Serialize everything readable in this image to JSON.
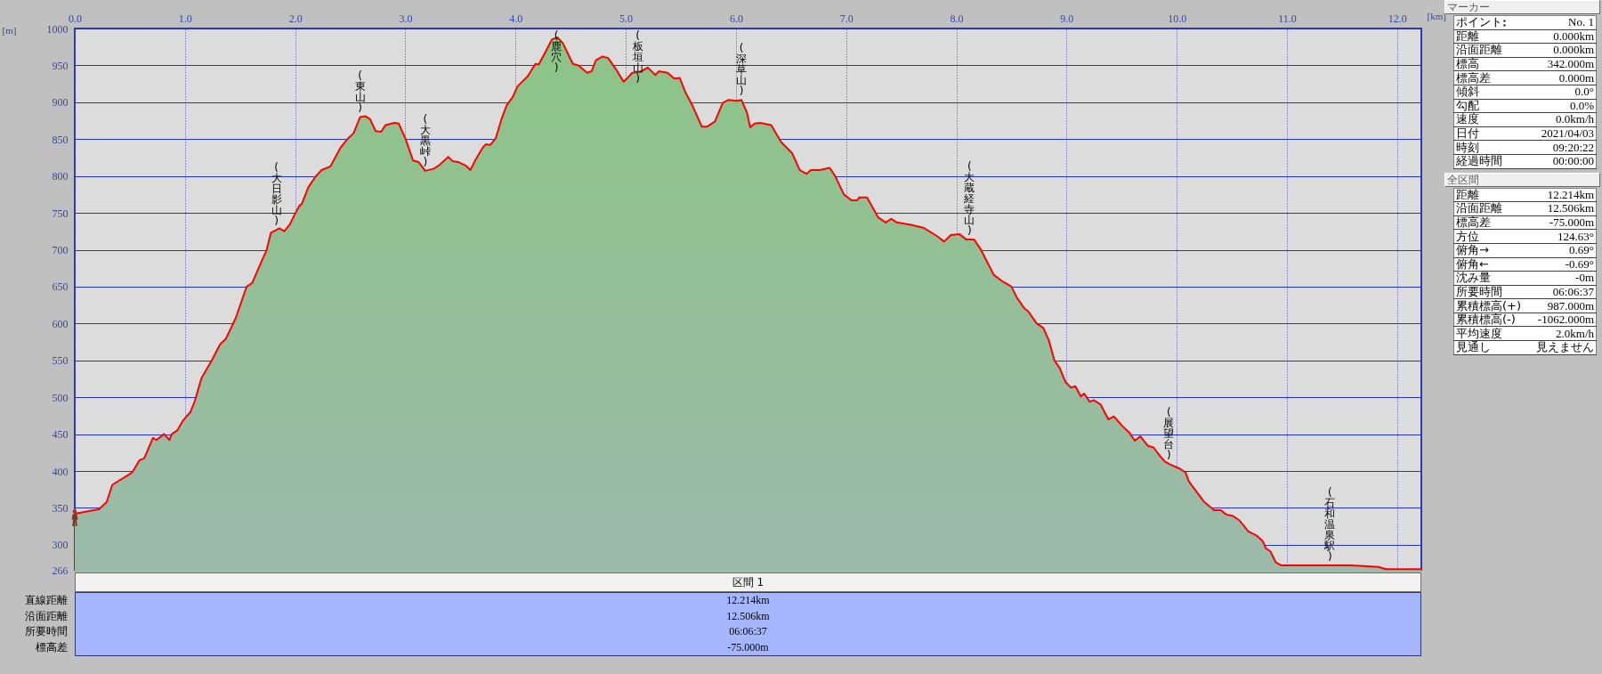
{
  "chart_data": [
    {
      "type": "area",
      "xlabel": "[km]",
      "ylabel": "[m]",
      "x": [
        0,
        0.14,
        0.22,
        0.29,
        0.34,
        0.37,
        0.49,
        0.52,
        0.59,
        0.63,
        0.71,
        0.74,
        0.81,
        0.86,
        0.88,
        0.93,
        0.98,
        1.05,
        1.09,
        1.15,
        1.24,
        1.32,
        1.37,
        1.46,
        1.56,
        1.61,
        1.7,
        1.74,
        1.78,
        1.86,
        1.9,
        1.95,
        2.0,
        2.04,
        2.06,
        2.12,
        2.19,
        2.24,
        2.32,
        2.41,
        2.48,
        2.53,
        2.59,
        2.64,
        2.68,
        2.73,
        2.78,
        2.82,
        2.9,
        2.94,
        3.0,
        3.07,
        3.12,
        3.18,
        3.26,
        3.31,
        3.39,
        3.43,
        3.48,
        3.55,
        3.59,
        3.63,
        3.7,
        3.73,
        3.77,
        3.82,
        3.87,
        3.92,
        3.97,
        4.02,
        4.11,
        4.18,
        4.21,
        4.26,
        4.33,
        4.38,
        4.43,
        4.52,
        4.57,
        4.65,
        4.69,
        4.73,
        4.79,
        4.84,
        4.91,
        4.98,
        5.01,
        5.06,
        5.13,
        5.2,
        5.27,
        5.3,
        5.38,
        5.44,
        5.49,
        5.54,
        5.61,
        5.69,
        5.74,
        5.81,
        5.88,
        5.93,
        6.01,
        6.05,
        6.1,
        6.13,
        6.17,
        6.22,
        6.32,
        6.41,
        6.51,
        6.58,
        6.64,
        6.68,
        6.76,
        6.85,
        6.9,
        6.98,
        7.05,
        7.1,
        7.12,
        7.19,
        7.29,
        7.36,
        7.41,
        7.46,
        7.58,
        7.7,
        7.82,
        7.89,
        7.95,
        8.03,
        8.09,
        8.16,
        8.22,
        8.34,
        8.41,
        8.5,
        8.55,
        8.62,
        8.65,
        8.73,
        8.79,
        8.84,
        8.89,
        8.94,
        8.99,
        9.04,
        9.08,
        9.13,
        9.16,
        9.21,
        9.25,
        9.31,
        9.38,
        9.43,
        9.5,
        9.57,
        9.62,
        9.67,
        9.74,
        9.79,
        9.84,
        9.89,
        9.94,
        10.03,
        10.08,
        10.11,
        10.25,
        10.34,
        10.4,
        10.45,
        10.51,
        10.57,
        10.65,
        10.73,
        10.78,
        10.81,
        10.85,
        10.9,
        10.95,
        11.59,
        11.83,
        11.9,
        12.22
      ],
      "series": [
        {
          "color": "#ff0000",
          "values": [
            342,
            346,
            348,
            358,
            381,
            384,
            395,
            398,
            415,
            417,
            445,
            442,
            450,
            442,
            450,
            455,
            468,
            480,
            495,
            526,
            549,
            572,
            579,
            607,
            650,
            655,
            686,
            699,
            723,
            729,
            725,
            734,
            749,
            760,
            762,
            785,
            800,
            808,
            813,
            838,
            851,
            858,
            880,
            881,
            877,
            861,
            860,
            869,
            872,
            871,
            851,
            821,
            819,
            807,
            810,
            815,
            826,
            820,
            819,
            814,
            808,
            820,
            838,
            843,
            842,
            851,
            876,
            896,
            906,
            922,
            935,
            952,
            951,
            965,
            985,
            988,
            980,
            952,
            950,
            940,
            942,
            957,
            962,
            960,
            945,
            928,
            932,
            940,
            941,
            947,
            937,
            942,
            940,
            932,
            933,
            914,
            894,
            867,
            867,
            874,
            899,
            903,
            902,
            903,
            886,
            866,
            871,
            872,
            869,
            846,
            831,
            808,
            803,
            808,
            808,
            811,
            800,
            775,
            767,
            767,
            771,
            771,
            744,
            737,
            742,
            737,
            734,
            730,
            719,
            711,
            720,
            721,
            714,
            714,
            701,
            666,
            658,
            650,
            635,
            620,
            617,
            600,
            594,
            577,
            550,
            539,
            521,
            513,
            515,
            501,
            505,
            494,
            496,
            490,
            470,
            474,
            462,
            452,
            441,
            447,
            434,
            432,
            422,
            413,
            409,
            403,
            398,
            386,
            358,
            347,
            347,
            341,
            339,
            333,
            318,
            312,
            305,
            295,
            291,
            276,
            272,
            272,
            270,
            267,
            267
          ]
        }
      ],
      "xlim": [
        0,
        12.22
      ],
      "ylim": [
        266,
        1000
      ],
      "xticks": [
        {
          "value": 0,
          "label": "0.0"
        },
        {
          "value": 1,
          "label": "1.0"
        },
        {
          "value": 2,
          "label": "2.0"
        },
        {
          "value": 3,
          "label": "3.0"
        },
        {
          "value": 4,
          "label": "4.0"
        },
        {
          "value": 5,
          "label": "5.0"
        },
        {
          "value": 6,
          "label": "6.0"
        },
        {
          "value": 7,
          "label": "7.0"
        },
        {
          "value": 8,
          "label": "8.0"
        },
        {
          "value": 9,
          "label": "9.0"
        },
        {
          "value": 10,
          "label": "10.0"
        },
        {
          "value": 11,
          "label": "11.0"
        },
        {
          "value": 12,
          "label": "12.0"
        }
      ],
      "yticks": [
        266,
        300,
        350,
        400,
        450,
        500,
        550,
        600,
        650,
        700,
        750,
        800,
        850,
        900,
        950,
        1000
      ],
      "grid": true,
      "annotations": [
        {
          "text": "(大日影山)",
          "x": 1.83,
          "y": 727
        },
        {
          "text": "(東山)",
          "x": 2.59,
          "y": 880
        },
        {
          "text": "(大黒峠)",
          "x": 3.18,
          "y": 807
        },
        {
          "text": "(鹿穴)",
          "x": 4.37,
          "y": 987
        },
        {
          "text": "(板垣山)",
          "x": 5.11,
          "y": 941
        },
        {
          "text": "(深草山)",
          "x": 6.05,
          "y": 903
        },
        {
          "text": "(大蔵経寺山)",
          "x": 8.12,
          "y": 714
        },
        {
          "text": "(展望台)",
          "x": 9.93,
          "y": 410
        },
        {
          "text": "(石和温泉駅)",
          "x": 11.39,
          "y": 272
        }
      ]
    },
    {
      "type": "other",
      "title": "マーカー",
      "categories": [
        "ポイント",
        "距離",
        "沿面距離",
        "標高",
        "標高差",
        "傾斜",
        "勾配",
        "速度",
        "日付",
        "時刻",
        "経過時間"
      ],
      "value_labels": [
        "No. 1",
        "0.000km",
        "0.000km",
        "342.000m",
        "0.000m",
        "0.0°",
        "0.0%",
        "0.0km/h",
        "2021/04/03",
        "09:20:22",
        "00:00:00"
      ]
    },
    {
      "type": "other",
      "title": "全区間",
      "categories": [
        "距離",
        "沿面距離",
        "標高差",
        "方位",
        "俯角→",
        "俯角←",
        "沈み量",
        "所要時間",
        "累積標高(+)",
        "累積標高(-)",
        "平均速度",
        "見通し"
      ],
      "value_labels": [
        "12.214km",
        "12.506km",
        "-75.000m",
        "124.63°",
        "0.69°",
        "-0.69°",
        "-0m",
        "06:06:37",
        "987.000m",
        "-1062.000m",
        "2.0km/h",
        "見えません"
      ]
    },
    {
      "type": "other",
      "title": "区間 1",
      "categories": [
        "直線距離",
        "沿面距離",
        "所要時間",
        "標高差"
      ],
      "value_labels": [
        "12.214km",
        "12.506km",
        "06:06:37",
        "-75.000m"
      ]
    }
  ]
}
